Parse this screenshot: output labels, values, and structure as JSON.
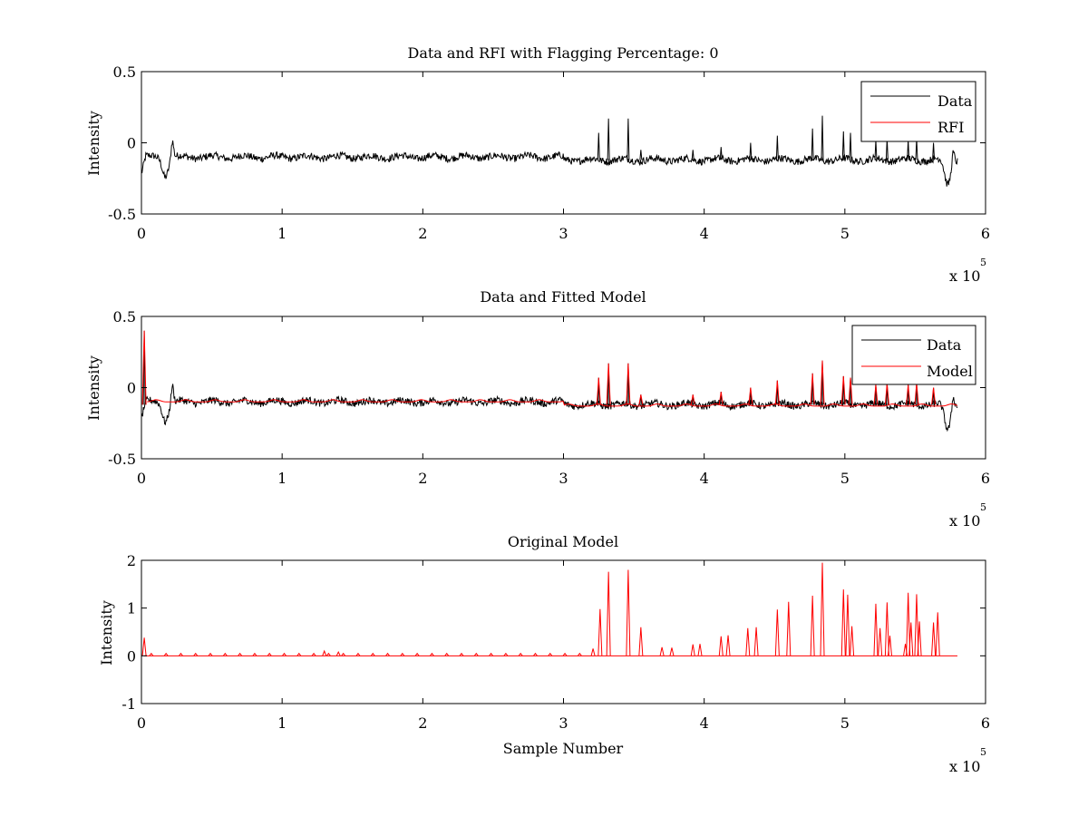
{
  "chart_data": [
    {
      "type": "line",
      "title": "Data and RFI with Flagging Percentage: 0",
      "xlabel": "",
      "ylabel": "Intensity",
      "xlim": [
        0,
        6
      ],
      "ylim": [
        -0.5,
        0.5
      ],
      "x_ticks": [
        "0",
        "1",
        "2",
        "3",
        "4",
        "5",
        "6"
      ],
      "y_ticks": [
        "0.5",
        "0",
        "-0.5"
      ],
      "x_multiplier": {
        "base": "x 10",
        "exponent": "5"
      },
      "grid": false,
      "legend_placement": "top-right",
      "series": [
        {
          "name": "Data",
          "color": "#000000",
          "baseline": -0.1,
          "noise": 0.025
        },
        {
          "name": "RFI",
          "color": "#ff0000",
          "values": []
        }
      ],
      "spikes": [
        {
          "x": 3.25,
          "y": 0.07
        },
        {
          "x": 3.32,
          "y": 0.17
        },
        {
          "x": 3.46,
          "y": 0.17
        },
        {
          "x": 3.55,
          "y": -0.05
        },
        {
          "x": 3.92,
          "y": -0.05
        },
        {
          "x": 4.12,
          "y": -0.03
        },
        {
          "x": 4.33,
          "y": 0.0
        },
        {
          "x": 4.52,
          "y": 0.05
        },
        {
          "x": 4.77,
          "y": 0.1
        },
        {
          "x": 4.84,
          "y": 0.19
        },
        {
          "x": 4.99,
          "y": 0.08
        },
        {
          "x": 5.04,
          "y": 0.07
        },
        {
          "x": 5.22,
          "y": 0.02
        },
        {
          "x": 5.3,
          "y": 0.03
        },
        {
          "x": 5.45,
          "y": 0.02
        },
        {
          "x": 5.51,
          "y": 0.03
        },
        {
          "x": 5.63,
          "y": 0.0
        }
      ]
    },
    {
      "type": "line",
      "title": "Data and Fitted Model",
      "xlabel": "",
      "ylabel": "Intensity",
      "xlim": [
        0,
        6
      ],
      "ylim": [
        -0.5,
        0.5
      ],
      "x_ticks": [
        "0",
        "1",
        "2",
        "3",
        "4",
        "5",
        "6"
      ],
      "y_ticks": [
        "0.5",
        "0",
        "-0.5"
      ],
      "x_multiplier": {
        "base": "x 10",
        "exponent": "5"
      },
      "grid": false,
      "legend_placement": "top-right",
      "series": [
        {
          "name": "Data",
          "color": "#000000",
          "baseline": -0.1,
          "noise": 0.025
        },
        {
          "name": "Model",
          "color": "#ff0000",
          "baseline": -0.1
        }
      ],
      "spikes": [
        {
          "x": 0.02,
          "y": 0.4
        },
        {
          "x": 3.25,
          "y": 0.07
        },
        {
          "x": 3.32,
          "y": 0.17
        },
        {
          "x": 3.46,
          "y": 0.17
        },
        {
          "x": 3.55,
          "y": -0.05
        },
        {
          "x": 3.92,
          "y": -0.05
        },
        {
          "x": 4.12,
          "y": -0.03
        },
        {
          "x": 4.33,
          "y": 0.0
        },
        {
          "x": 4.52,
          "y": 0.05
        },
        {
          "x": 4.77,
          "y": 0.1
        },
        {
          "x": 4.84,
          "y": 0.19
        },
        {
          "x": 4.99,
          "y": 0.08
        },
        {
          "x": 5.04,
          "y": 0.07
        },
        {
          "x": 5.22,
          "y": 0.02
        },
        {
          "x": 5.3,
          "y": 0.03
        },
        {
          "x": 5.45,
          "y": 0.02
        },
        {
          "x": 5.51,
          "y": 0.03
        },
        {
          "x": 5.63,
          "y": 0.0
        }
      ]
    },
    {
      "type": "line",
      "title": "Original Model",
      "xlabel": "Sample Number",
      "ylabel": "Intensity",
      "xlim": [
        0,
        6
      ],
      "ylim": [
        -1,
        2
      ],
      "x_ticks": [
        "0",
        "1",
        "2",
        "3",
        "4",
        "5",
        "6"
      ],
      "y_ticks": [
        "2",
        "1",
        "0",
        "-1"
      ],
      "x_multiplier": {
        "base": "x 10",
        "exponent": "5"
      },
      "grid": false,
      "series": [
        {
          "color": "#ff0000",
          "baseline": 0
        }
      ],
      "spikes": [
        {
          "x": 0.02,
          "y": 0.38
        },
        {
          "x": 1.3,
          "y": 0.1
        },
        {
          "x": 1.4,
          "y": 0.08
        },
        {
          "x": 3.21,
          "y": 0.15
        },
        {
          "x": 3.26,
          "y": 0.98
        },
        {
          "x": 3.32,
          "y": 1.76
        },
        {
          "x": 3.46,
          "y": 1.8
        },
        {
          "x": 3.55,
          "y": 0.6
        },
        {
          "x": 3.7,
          "y": 0.18
        },
        {
          "x": 3.77,
          "y": 0.17
        },
        {
          "x": 3.92,
          "y": 0.24
        },
        {
          "x": 3.97,
          "y": 0.25
        },
        {
          "x": 4.12,
          "y": 0.41
        },
        {
          "x": 4.17,
          "y": 0.43
        },
        {
          "x": 4.31,
          "y": 0.58
        },
        {
          "x": 4.37,
          "y": 0.6
        },
        {
          "x": 4.52,
          "y": 0.97
        },
        {
          "x": 4.6,
          "y": 1.13
        },
        {
          "x": 4.77,
          "y": 1.26
        },
        {
          "x": 4.84,
          "y": 1.95
        },
        {
          "x": 4.99,
          "y": 1.39
        },
        {
          "x": 5.02,
          "y": 1.28
        },
        {
          "x": 5.05,
          "y": 0.62
        },
        {
          "x": 5.22,
          "y": 1.09
        },
        {
          "x": 5.25,
          "y": 0.58
        },
        {
          "x": 5.3,
          "y": 1.12
        },
        {
          "x": 5.32,
          "y": 0.42
        },
        {
          "x": 5.43,
          "y": 0.25
        },
        {
          "x": 5.45,
          "y": 1.32
        },
        {
          "x": 5.47,
          "y": 0.7
        },
        {
          "x": 5.51,
          "y": 1.29
        },
        {
          "x": 5.53,
          "y": 0.72
        },
        {
          "x": 5.63,
          "y": 0.7
        },
        {
          "x": 5.66,
          "y": 0.91
        }
      ]
    }
  ]
}
